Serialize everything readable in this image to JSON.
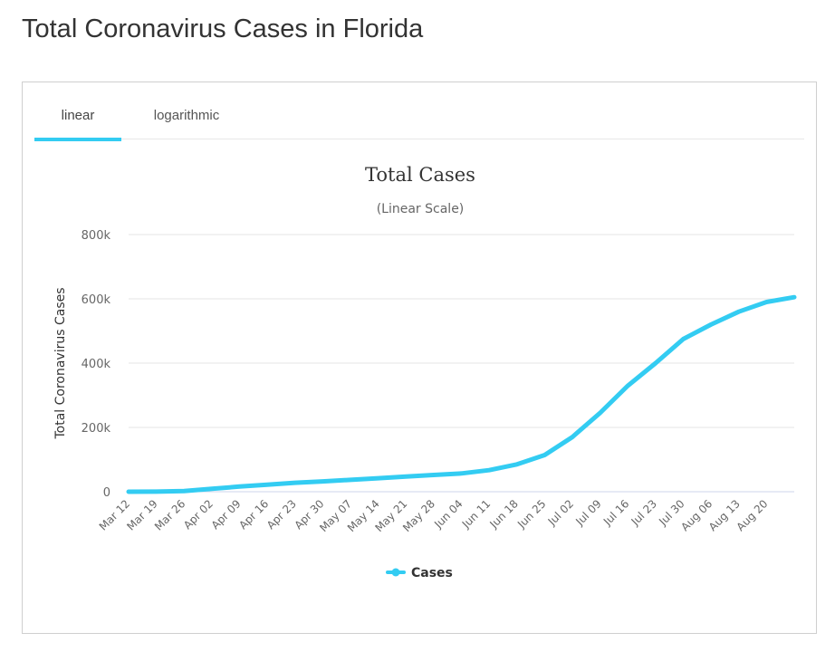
{
  "page": {
    "title": "Total Coronavirus Cases in Florida"
  },
  "tabs": [
    {
      "label": "linear",
      "active": true
    },
    {
      "label": "logarithmic",
      "active": false
    }
  ],
  "colors": {
    "accent": "#33ccf2",
    "series": "#33ccf2",
    "grid": "#e6e6e6",
    "text": "#333333"
  },
  "chart_data": {
    "type": "line",
    "title": "Total Cases",
    "subtitle": "(Linear Scale)",
    "ylabel": "Total Coronavirus Cases",
    "xlabel": "",
    "ylim": [
      0,
      800000
    ],
    "y_ticks": [
      {
        "value": 0,
        "label": "0"
      },
      {
        "value": 200000,
        "label": "200k"
      },
      {
        "value": 400000,
        "label": "400k"
      },
      {
        "value": 600000,
        "label": "600k"
      },
      {
        "value": 800000,
        "label": "800k"
      }
    ],
    "x_tick_labels": [
      "Mar 12",
      "Mar 19",
      "Mar 26",
      "Apr 02",
      "Apr 09",
      "Apr 16",
      "Apr 23",
      "Apr 30",
      "May 07",
      "May 14",
      "May 21",
      "May 28",
      "Jun 04",
      "Jun 11",
      "Jun 18",
      "Jun 25",
      "Jul 02",
      "Jul 09",
      "Jul 16",
      "Jul 23",
      "Jul 30",
      "Aug 06",
      "Aug 13",
      "Aug 20"
    ],
    "grid": true,
    "legend": {
      "position": "bottom-center"
    },
    "series": [
      {
        "name": "Cases",
        "x": [
          "Mar 12",
          "Mar 19",
          "Mar 26",
          "Apr 02",
          "Apr 09",
          "Apr 16",
          "Apr 23",
          "Apr 30",
          "May 07",
          "May 14",
          "May 21",
          "May 28",
          "Jun 04",
          "Jun 11",
          "Jun 18",
          "Jun 25",
          "Jul 02",
          "Jul 09",
          "Jul 16",
          "Jul 23",
          "Jul 30",
          "Aug 06",
          "Aug 13",
          "Aug 20",
          "Aug 25"
        ],
        "values": [
          0,
          300,
          2000,
          9000,
          16000,
          22000,
          28000,
          32000,
          37000,
          42000,
          47000,
          52000,
          57000,
          67000,
          85000,
          114000,
          170000,
          245000,
          330000,
          400000,
          475000,
          520000,
          560000,
          590000,
          605000
        ]
      }
    ]
  }
}
